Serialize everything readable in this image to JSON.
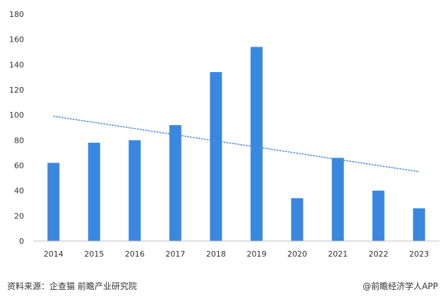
{
  "chart_data": {
    "type": "bar",
    "categories": [
      "2014",
      "2015",
      "2016",
      "2017",
      "2018",
      "2019",
      "2020",
      "2021",
      "2022",
      "2023"
    ],
    "values": [
      62,
      78,
      80,
      92,
      134,
      154,
      34,
      66,
      40,
      26
    ],
    "trendline": {
      "style": "dotted linear",
      "start": 99,
      "end": 55
    },
    "title": "",
    "xlabel": "",
    "ylabel": "",
    "ylim": [
      0,
      180
    ],
    "yticks": [
      0,
      20,
      40,
      60,
      80,
      100,
      120,
      140,
      160,
      180
    ],
    "grid": false,
    "legend": "none",
    "colors": {
      "bar": "#3a87e0",
      "trend": "#4a8fd8",
      "axis": "#bfbfbf"
    }
  },
  "footer": {
    "source": "资料来源：企查猫 前瞻产业研究院",
    "brand": "@前瞻经济学人APP"
  }
}
